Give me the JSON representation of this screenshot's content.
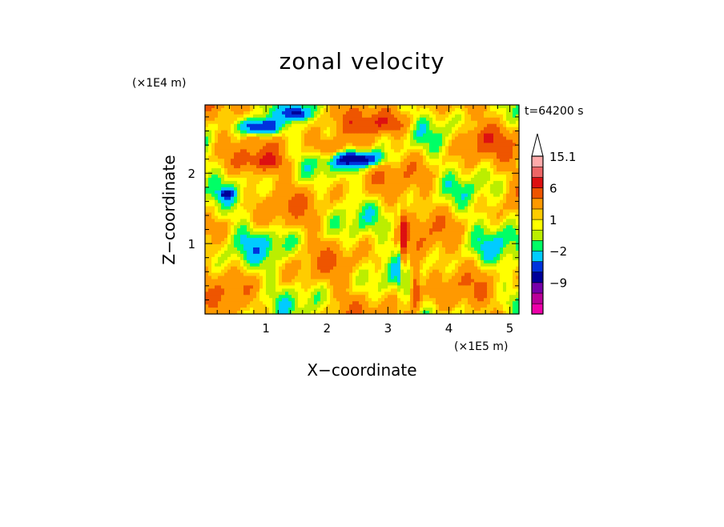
{
  "chart_data": {
    "type": "heatmap",
    "title": "zonal velocity",
    "xlabel": "X−coordinate",
    "ylabel": "Z−coordinate",
    "x_unit": "(×1E5 m)",
    "y_unit": "(×1E4 m)",
    "time_label": "t=64200 s",
    "xlim": [
      0,
      5.15
    ],
    "ylim": [
      0,
      2.97
    ],
    "x_ticks": [
      1,
      2,
      3,
      4,
      5
    ],
    "y_ticks": [
      1,
      2
    ],
    "colorbar": {
      "levels": [
        -15,
        -12,
        -9,
        -6,
        -4,
        -2,
        -1,
        0,
        1,
        2,
        4,
        6,
        9,
        12,
        15.1
      ],
      "colors": [
        "#ee00aa",
        "#bb0099",
        "#7700aa",
        "#000099",
        "#0033dd",
        "#00ccff",
        "#00ff66",
        "#bbee00",
        "#ffff00",
        "#ffcc00",
        "#ff9900",
        "#ee5500",
        "#dd1111",
        "#ee6666",
        "#ffaaaa",
        "#ffffff"
      ],
      "tick_labels": [
        {
          "value": 15.1,
          "label": "15.1"
        },
        {
          "value": 6,
          "label": "6"
        },
        {
          "value": 1,
          "label": "1"
        },
        {
          "value": -2,
          "label": "−2"
        },
        {
          "value": -9,
          "label": "−9"
        }
      ]
    },
    "grid": false
  }
}
